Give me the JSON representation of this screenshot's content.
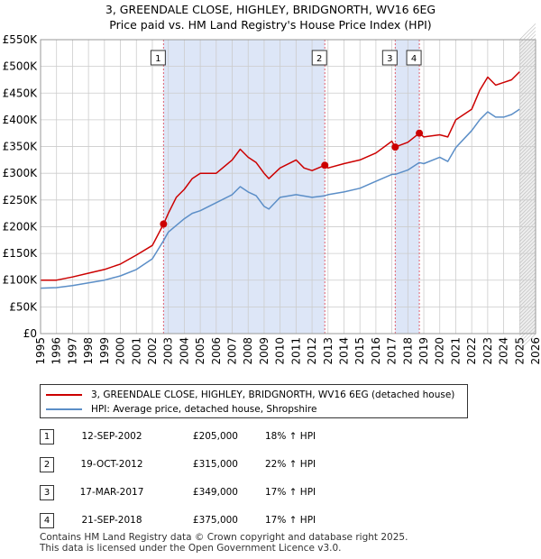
{
  "title": {
    "line1": "3, GREENDALE CLOSE, HIGHLEY, BRIDGNORTH, WV16 6EG",
    "line2": "Price paid vs. HM Land Registry's House Price Index (HPI)"
  },
  "legend": {
    "property_label": "3, GREENDALE CLOSE, HIGHLEY, BRIDGNORTH, WV16 6EG (detached house)",
    "hpi_label": "HPI: Average price, detached house, Shropshire"
  },
  "sales": [
    {
      "num": "1",
      "date": "12-SEP-2002",
      "price": "£205,000",
      "hpi": "18% ↑ HPI"
    },
    {
      "num": "2",
      "date": "19-OCT-2012",
      "price": "£315,000",
      "hpi": "22% ↑ HPI"
    },
    {
      "num": "3",
      "date": "17-MAR-2017",
      "price": "£349,000",
      "hpi": "17% ↑ HPI"
    },
    {
      "num": "4",
      "date": "21-SEP-2018",
      "price": "£375,000",
      "hpi": "17% ↑ HPI"
    }
  ],
  "footer": {
    "line1": "Contains HM Land Registry data © Crown copyright and database right 2025.",
    "line2": "This data is licensed under the Open Government Licence v3.0."
  },
  "colors": {
    "property": "#cc0000",
    "hpi": "#5b8ec7",
    "shade": "#dde6f7",
    "grid": "#cccccc",
    "marker_line": "#e06070"
  },
  "chart_data": {
    "type": "line",
    "ylim": [
      0,
      550000
    ],
    "xlim": [
      1995,
      2026
    ],
    "y_ticks": [
      {
        "value": 0,
        "label": "£0"
      },
      {
        "value": 50000,
        "label": "£50K"
      },
      {
        "value": 100000,
        "label": "£100K"
      },
      {
        "value": 150000,
        "label": "£150K"
      },
      {
        "value": 200000,
        "label": "£200K"
      },
      {
        "value": 250000,
        "label": "£250K"
      },
      {
        "value": 300000,
        "label": "£300K"
      },
      {
        "value": 350000,
        "label": "£350K"
      },
      {
        "value": 400000,
        "label": "£400K"
      },
      {
        "value": 450000,
        "label": "£450K"
      },
      {
        "value": 500000,
        "label": "£500K"
      },
      {
        "value": 550000,
        "label": "£550K"
      }
    ],
    "x_ticks": [
      "1995",
      "1996",
      "1997",
      "1998",
      "1999",
      "2000",
      "2001",
      "2002",
      "2003",
      "2004",
      "2005",
      "2006",
      "2007",
      "2008",
      "2009",
      "2010",
      "2011",
      "2012",
      "2013",
      "2014",
      "2015",
      "2016",
      "2017",
      "2018",
      "2019",
      "2020",
      "2021",
      "2022",
      "2023",
      "2024",
      "2025",
      "2026"
    ],
    "shaded_ranges": [
      [
        2002.7,
        2012.8
      ],
      [
        2017.2,
        2018.72
      ]
    ],
    "future_from": 2025.0,
    "sale_markers": [
      {
        "label": "1",
        "x": 2002.7,
        "y": 205000
      },
      {
        "label": "2",
        "x": 2012.8,
        "y": 315000
      },
      {
        "label": "3",
        "x": 2017.21,
        "y": 349000
      },
      {
        "label": "4",
        "x": 2018.72,
        "y": 375000
      }
    ],
    "series": [
      {
        "name": "3, GREENDALE CLOSE, HIGHLEY, BRIDGNORTH, WV16 6EG (detached house)",
        "x": [
          1995,
          1996,
          1997,
          1998,
          1999,
          2000,
          2001,
          2002,
          2002.7,
          2003,
          2003.5,
          2004,
          2004.5,
          2005,
          2006,
          2007,
          2007.5,
          2008,
          2008.5,
          2009,
          2009.3,
          2010,
          2011,
          2011.5,
          2012,
          2012.8,
          2013,
          2014,
          2015,
          2016,
          2017,
          2017.21,
          2018,
          2018.72,
          2019,
          2020,
          2020.5,
          2021,
          2022,
          2022.5,
          2023,
          2023.5,
          2024,
          2024.5,
          2025.0
        ],
        "y": [
          100000,
          100000,
          106000,
          113000,
          120000,
          130000,
          147000,
          165000,
          205000,
          225000,
          255000,
          270000,
          290000,
          300000,
          300000,
          325000,
          345000,
          330000,
          320000,
          300000,
          290000,
          310000,
          325000,
          310000,
          305000,
          315000,
          310000,
          318000,
          325000,
          338000,
          360000,
          349000,
          358000,
          375000,
          368000,
          372000,
          368000,
          400000,
          420000,
          455000,
          480000,
          465000,
          470000,
          475000,
          490000
        ]
      },
      {
        "name": "HPI: Average price, detached house, Shropshire",
        "x": [
          1995,
          1996,
          1997,
          1998,
          1999,
          2000,
          2001,
          2002,
          2002.7,
          2003,
          2004,
          2004.5,
          2005,
          2006,
          2007,
          2007.5,
          2008,
          2008.5,
          2009,
          2009.3,
          2010,
          2011,
          2012,
          2012.8,
          2013,
          2014,
          2015,
          2016,
          2017,
          2017.21,
          2018,
          2018.72,
          2019,
          2020,
          2020.5,
          2021,
          2022,
          2022.5,
          2023,
          2023.5,
          2024,
          2024.5,
          2025.0
        ],
        "y": [
          85000,
          86000,
          90000,
          95000,
          100000,
          108000,
          120000,
          140000,
          174000,
          190000,
          215000,
          225000,
          230000,
          245000,
          260000,
          275000,
          265000,
          258000,
          238000,
          233000,
          255000,
          260000,
          255000,
          258000,
          260000,
          265000,
          272000,
          285000,
          298000,
          298000,
          306000,
          320000,
          318000,
          330000,
          322000,
          348000,
          380000,
          400000,
          415000,
          405000,
          405000,
          410000,
          420000
        ]
      }
    ]
  }
}
